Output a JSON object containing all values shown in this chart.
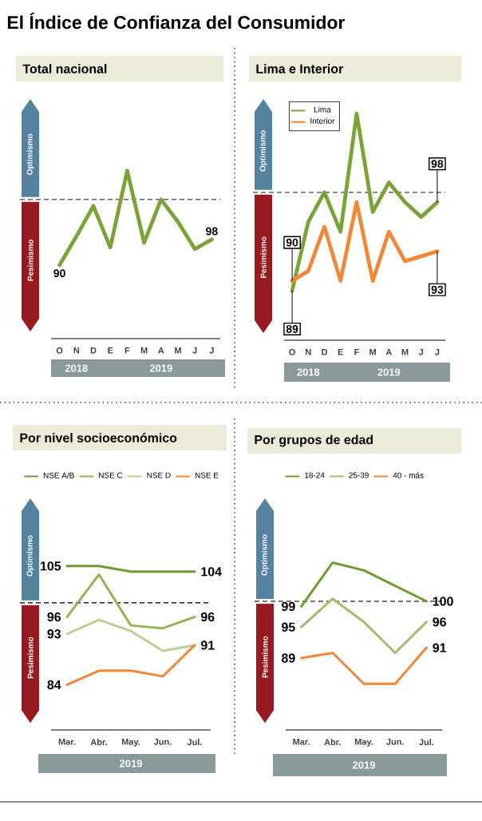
{
  "chart_data": [
    {
      "type": "line",
      "title": "El Índice de Confianza del Consumidor",
      "subtitle": "Total nacional",
      "categories": [
        "O",
        "N",
        "D",
        "E",
        "F",
        "M",
        "A",
        "M",
        "J",
        "J"
      ],
      "series": [
        {
          "color": "#7aa33a",
          "values": [
            90,
            99,
            108.5,
            95.5,
            119.5,
            97,
            110.5,
            103.5,
            95,
            98
          ],
          "value_labels": [
            "90",
            null,
            null,
            null,
            null,
            null,
            null,
            null,
            null,
            "98"
          ]
        }
      ],
      "tick_labels": "x",
      "ref_lines": [
        {
          "axis": "y",
          "value": 110.5,
          "line_style": "dashed",
          "color": "#666666"
        }
      ],
      "annotations": [
        "Optimismo",
        "Pesimismo",
        "2018",
        "2019"
      ]
    },
    {
      "type": "line",
      "subtitle": "Lima e Interior",
      "categories": [
        "O",
        "N",
        "D",
        "E",
        "F",
        "M",
        "A",
        "M",
        "J",
        "J"
      ],
      "series": [
        {
          "name": "Lima",
          "color": "#7aa33a",
          "values": [
            89,
            96,
            99,
            95,
            107,
            97,
            100,
            98,
            96.5,
            98
          ],
          "value_labels": [
            "89",
            null,
            null,
            null,
            null,
            null,
            null,
            null,
            null,
            "98"
          ]
        },
        {
          "name": "Interior",
          "color": "#f0883a",
          "values": [
            90,
            91,
            95.5,
            90,
            98,
            90,
            95,
            92,
            92.5,
            93
          ],
          "value_labels": [
            "90",
            null,
            null,
            null,
            null,
            null,
            null,
            null,
            null,
            "93"
          ]
        }
      ],
      "tick_labels": "x",
      "legend": "top left",
      "ref_lines": [
        {
          "axis": "y",
          "value": 99,
          "line_style": "dashed",
          "color": "#444444"
        }
      ],
      "annotations": [
        "Optimismo",
        "Pesimismo",
        "2018",
        "2019"
      ]
    },
    {
      "type": "line",
      "subtitle": "Por nivel socioeconómico",
      "xlabel": "2019",
      "categories": [
        "Mar.",
        "Abr.",
        "May.",
        "Jun.",
        "Jul."
      ],
      "series": [
        {
          "name": "NSE A/B",
          "color": "#6f9a34",
          "values": [
            105,
            105,
            104,
            104,
            104
          ],
          "value_labels": [
            "105",
            null,
            null,
            null,
            "104"
          ]
        },
        {
          "name": "NSE C",
          "color": "#98b35a",
          "values": [
            96,
            103.5,
            94.5,
            94,
            96
          ],
          "value_labels": [
            "96",
            null,
            null,
            null,
            "96"
          ]
        },
        {
          "name": "NSE D",
          "color": "#bccf94",
          "values": [
            93,
            95.5,
            93.5,
            90,
            91
          ],
          "value_labels": [
            "93",
            null,
            null,
            null,
            null
          ]
        },
        {
          "name": "NSE E",
          "color": "#f0883a",
          "values": [
            84,
            86.5,
            86.5,
            85.5,
            91
          ],
          "value_labels": [
            "84",
            null,
            null,
            null,
            "91"
          ]
        }
      ],
      "tick_labels": "x",
      "legend": "top",
      "ref_lines": [
        {
          "axis": "y",
          "value": 98.5,
          "line_style": "dashed",
          "color": "#222222"
        }
      ],
      "annotations": [
        "Optimismo",
        "Pesimismo"
      ]
    },
    {
      "type": "line",
      "subtitle": "Por grupos de edad",
      "xlabel": "2019",
      "categories": [
        "Mar.",
        "Abr.",
        "May.",
        "Jun.",
        "Jul."
      ],
      "series": [
        {
          "name": "18-24",
          "color": "#6f9a34",
          "values": [
            99,
            107.5,
            106,
            103,
            100
          ],
          "value_labels": [
            "99",
            null,
            null,
            null,
            "100"
          ]
        },
        {
          "name": "25-39",
          "color": "#a3bb70",
          "values": [
            95,
            100.5,
            96,
            90,
            96
          ],
          "value_labels": [
            "95",
            null,
            null,
            null,
            "96"
          ]
        },
        {
          "name": "40 - más",
          "color": "#f0883a",
          "values": [
            89,
            90,
            84,
            84,
            91
          ],
          "value_labels": [
            "89",
            null,
            null,
            null,
            "91"
          ]
        }
      ],
      "tick_labels": "x",
      "legend": "top",
      "ref_lines": [
        {
          "axis": "y",
          "value": 100,
          "line_style": "dashed",
          "color": "#222222"
        }
      ],
      "annotations": [
        "Optimismo",
        "Pesimismo"
      ]
    }
  ]
}
